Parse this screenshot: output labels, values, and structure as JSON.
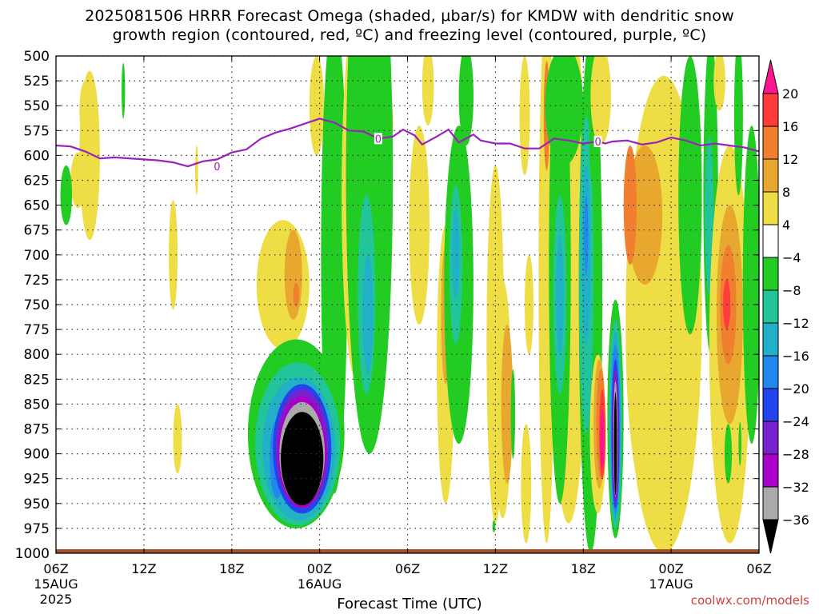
{
  "title_line1": "2025081506 HRRR Forecast Omega (shaded, μbar/s) for KMDW with dendritic snow",
  "title_line2": "growth region (contoured, red, ºC) and freezing level (contoured, purple, ºC)",
  "credit": "coolwx.com/models",
  "chart_data": {
    "type": "heatmap",
    "xlabel": "Forecast Time (UTC)",
    "x_ticks": [
      {
        "label": "06Z",
        "date": "15AUG",
        "year": "2025",
        "hour": 0
      },
      {
        "label": "12Z",
        "date": "",
        "year": "",
        "hour": 6
      },
      {
        "label": "18Z",
        "date": "",
        "year": "",
        "hour": 12
      },
      {
        "label": "00Z",
        "date": "16AUG",
        "year": "",
        "hour": 18
      },
      {
        "label": "06Z",
        "date": "",
        "year": "",
        "hour": 24
      },
      {
        "label": "12Z",
        "date": "",
        "year": "",
        "hour": 30
      },
      {
        "label": "18Z",
        "date": "",
        "year": "",
        "hour": 36
      },
      {
        "label": "00Z",
        "date": "17AUG",
        "year": "",
        "hour": 42
      },
      {
        "label": "06Z",
        "date": "",
        "year": "",
        "hour": 48
      }
    ],
    "xlim_hours": [
      0,
      48
    ],
    "y_ticks": [
      500,
      525,
      550,
      575,
      600,
      625,
      650,
      675,
      700,
      725,
      750,
      775,
      800,
      825,
      850,
      875,
      900,
      925,
      950,
      975,
      1000
    ],
    "ylim": [
      500,
      1000
    ],
    "y_inverted": true,
    "colorbar": {
      "labels": [
        "20",
        "16",
        "12",
        "8",
        "4",
        "−4",
        "−8",
        "−12",
        "−16",
        "−20",
        "−24",
        "−28",
        "−32",
        "−36"
      ],
      "bands": [
        {
          "from": 20,
          "to": 24,
          "color": "#ff1493"
        },
        {
          "from": 16,
          "to": 20,
          "color": "#ff3c3c"
        },
        {
          "from": 12,
          "to": 16,
          "color": "#f08030"
        },
        {
          "from": 8,
          "to": 12,
          "color": "#e8a830"
        },
        {
          "from": 4,
          "to": 8,
          "color": "#eedd44"
        },
        {
          "from": -4,
          "to": 4,
          "color": "#ffffff"
        },
        {
          "from": -8,
          "to": -4,
          "color": "#22cc22"
        },
        {
          "from": -12,
          "to": -8,
          "color": "#22c49a"
        },
        {
          "from": -16,
          "to": -12,
          "color": "#22b0c8"
        },
        {
          "from": -20,
          "to": -16,
          "color": "#2288ee"
        },
        {
          "from": -24,
          "to": -20,
          "color": "#2244ee"
        },
        {
          "from": -28,
          "to": -24,
          "color": "#7722cc"
        },
        {
          "from": -32,
          "to": -28,
          "color": "#aa00cc"
        },
        {
          "from": -36,
          "to": -32,
          "color": "#aaaaaa"
        },
        {
          "from": -40,
          "to": -36,
          "color": "#000000"
        }
      ]
    },
    "freezing_level": {
      "label": "0",
      "color": "#9922bb",
      "points": [
        [
          0,
          590
        ],
        [
          1,
          591
        ],
        [
          2,
          596
        ],
        [
          3,
          603
        ],
        [
          4,
          602
        ],
        [
          5,
          603
        ],
        [
          6,
          604
        ],
        [
          7,
          605
        ],
        [
          8,
          607
        ],
        [
          9,
          611
        ],
        [
          10,
          606
        ],
        [
          11,
          604
        ],
        [
          12,
          597
        ],
        [
          13,
          594
        ],
        [
          14,
          583
        ],
        [
          15,
          577
        ],
        [
          16,
          573
        ],
        [
          17,
          568
        ],
        [
          18,
          563
        ],
        [
          19,
          567
        ],
        [
          20,
          575
        ],
        [
          21,
          576
        ],
        [
          22,
          583
        ],
        [
          23,
          581
        ],
        [
          23.7,
          574
        ],
        [
          24.5,
          580
        ],
        [
          25,
          589
        ],
        [
          26,
          581
        ],
        [
          26.8,
          574
        ],
        [
          27.5,
          587
        ],
        [
          28.5,
          579
        ],
        [
          29,
          585
        ],
        [
          30,
          588
        ],
        [
          31,
          588
        ],
        [
          32,
          593
        ],
        [
          33,
          593
        ],
        [
          34,
          583
        ],
        [
          35,
          585
        ],
        [
          36,
          588
        ],
        [
          37,
          586
        ],
        [
          37.5,
          588
        ],
        [
          38,
          586
        ],
        [
          39,
          585
        ],
        [
          40,
          589
        ],
        [
          41,
          587
        ],
        [
          42,
          582
        ],
        [
          43,
          585
        ],
        [
          44,
          590
        ],
        [
          45,
          588
        ],
        [
          46,
          590
        ],
        [
          47,
          592
        ],
        [
          48,
          596
        ]
      ],
      "label_positions": [
        [
          11,
          611
        ],
        [
          22,
          583
        ],
        [
          37,
          586
        ]
      ]
    },
    "surface_fill": {
      "color": "#a0522d",
      "pressure_from": 996,
      "pressure_to": 1000
    },
    "omega_features": [
      {
        "x": 2.3,
        "p": 600,
        "rx": 0.7,
        "rp": 85,
        "value": 5
      },
      {
        "x": 2.0,
        "p": 555,
        "rx": 0.4,
        "rp": 30,
        "value": 5
      },
      {
        "x": 1.5,
        "p": 625,
        "rx": 0.5,
        "rp": 28,
        "value": 5
      },
      {
        "x": 0.7,
        "p": 640,
        "rx": 0.4,
        "rp": 30,
        "value": -6
      },
      {
        "x": 4.6,
        "p": 535,
        "rx": 0.12,
        "rp": 28,
        "value": -6
      },
      {
        "x": 9.6,
        "p": 615,
        "rx": 0.1,
        "rp": 25,
        "value": 5
      },
      {
        "x": 8.0,
        "p": 700,
        "rx": 0.3,
        "rp": 55,
        "value": 5
      },
      {
        "x": 8.3,
        "p": 885,
        "rx": 0.3,
        "rp": 35,
        "value": 5
      },
      {
        "x": 15.5,
        "p": 730,
        "rx": 1.8,
        "rp": 65,
        "value": 5
      },
      {
        "x": 16.2,
        "p": 720,
        "rx": 0.6,
        "rp": 45,
        "value": 9
      },
      {
        "x": 16.4,
        "p": 740,
        "rx": 0.2,
        "rp": 12,
        "value": 13
      },
      {
        "x": 17.8,
        "p": 550,
        "rx": 0.5,
        "rp": 50,
        "value": 5
      },
      {
        "x": 19.0,
        "p": 700,
        "rx": 0.9,
        "rp": 240,
        "value": -6
      },
      {
        "x": 16.4,
        "p": 880,
        "rx": 3.3,
        "rp": 95,
        "value": -6
      },
      {
        "x": 16.5,
        "p": 890,
        "rx": 2.9,
        "rp": 82,
        "value": -10
      },
      {
        "x": 16.6,
        "p": 895,
        "rx": 2.5,
        "rp": 72,
        "value": -14
      },
      {
        "x": 15.1,
        "p": 905,
        "rx": 0.5,
        "rp": 40,
        "value": -18
      },
      {
        "x": 16.8,
        "p": 895,
        "rx": 2.0,
        "rp": 65,
        "value": -22
      },
      {
        "x": 16.8,
        "p": 895,
        "rx": 1.8,
        "rp": 60,
        "value": -26
      },
      {
        "x": 16.8,
        "p": 898,
        "rx": 1.65,
        "rp": 56,
        "value": -30
      },
      {
        "x": 16.8,
        "p": 900,
        "rx": 1.55,
        "rp": 52,
        "value": -34
      },
      {
        "x": 16.8,
        "p": 905,
        "rx": 1.45,
        "rp": 47,
        "value": -38
      },
      {
        "x": 20.5,
        "p": 640,
        "rx": 1.0,
        "rp": 185,
        "value": 5
      },
      {
        "x": 20.4,
        "p": 620,
        "rx": 0.6,
        "rp": 140,
        "value": 9
      },
      {
        "x": 20.3,
        "p": 620,
        "rx": 0.45,
        "rp": 110,
        "value": 13
      },
      {
        "x": 20.3,
        "p": 630,
        "rx": 0.35,
        "rp": 90,
        "value": 17
      },
      {
        "x": 20.2,
        "p": 650,
        "rx": 0.25,
        "rp": 70,
        "value": 21
      },
      {
        "x": 21.8,
        "p": 570,
        "rx": 1.2,
        "rp": 80,
        "value": 9
      },
      {
        "x": 21.5,
        "p": 545,
        "rx": 1.0,
        "rp": 50,
        "value": 13
      },
      {
        "x": 21.4,
        "p": 620,
        "rx": 1.6,
        "rp": 280,
        "value": -6
      },
      {
        "x": 21.2,
        "p": 740,
        "rx": 0.6,
        "rp": 100,
        "value": -10
      },
      {
        "x": 21.3,
        "p": 760,
        "rx": 0.35,
        "rp": 60,
        "value": -14
      },
      {
        "x": 24.8,
        "p": 670,
        "rx": 0.7,
        "rp": 100,
        "value": 5
      },
      {
        "x": 25.4,
        "p": 530,
        "rx": 0.4,
        "rp": 40,
        "value": 5
      },
      {
        "x": 26.6,
        "p": 810,
        "rx": 0.6,
        "rp": 140,
        "value": 5
      },
      {
        "x": 26.6,
        "p": 760,
        "rx": 0.3,
        "rp": 70,
        "value": 9
      },
      {
        "x": 27.5,
        "p": 730,
        "rx": 1.0,
        "rp": 160,
        "value": -6
      },
      {
        "x": 27.3,
        "p": 710,
        "rx": 0.45,
        "rp": 80,
        "value": -10
      },
      {
        "x": 27.3,
        "p": 700,
        "rx": 0.25,
        "rp": 45,
        "value": -14
      },
      {
        "x": 28.0,
        "p": 540,
        "rx": 0.5,
        "rp": 50,
        "value": -6
      },
      {
        "x": 30.0,
        "p": 790,
        "rx": 0.6,
        "rp": 180,
        "value": 5
      },
      {
        "x": 30.5,
        "p": 845,
        "rx": 0.6,
        "rp": 120,
        "value": 5
      },
      {
        "x": 30.8,
        "p": 850,
        "rx": 0.4,
        "rp": 80,
        "value": 9
      },
      {
        "x": 31.2,
        "p": 860,
        "rx": 0.15,
        "rp": 45,
        "value": -6
      },
      {
        "x": 29.9,
        "p": 973,
        "rx": 0.1,
        "rp": 6,
        "value": -6
      },
      {
        "x": 32.1,
        "p": 930,
        "rx": 0.35,
        "rp": 60,
        "value": 5
      },
      {
        "x": 32.3,
        "p": 750,
        "rx": 0.3,
        "rp": 50,
        "value": 5
      },
      {
        "x": 33.5,
        "p": 720,
        "rx": 0.55,
        "rp": 270,
        "value": 5
      },
      {
        "x": 32.0,
        "p": 560,
        "rx": 0.35,
        "rp": 60,
        "value": 5
      },
      {
        "x": 35.0,
        "p": 710,
        "rx": 1.3,
        "rp": 260,
        "value": 5
      },
      {
        "x": 33.5,
        "p": 560,
        "rx": 0.2,
        "rp": 55,
        "value": 13
      },
      {
        "x": 34.7,
        "p": 550,
        "rx": 1.3,
        "rp": 60,
        "value": -6
      },
      {
        "x": 34.4,
        "p": 710,
        "rx": 0.75,
        "rp": 240,
        "value": -6
      },
      {
        "x": 34.4,
        "p": 740,
        "rx": 0.45,
        "rp": 100,
        "value": -10
      },
      {
        "x": 34.4,
        "p": 740,
        "rx": 0.25,
        "rp": 60,
        "value": -14
      },
      {
        "x": 36.5,
        "p": 740,
        "rx": 0.8,
        "rp": 260,
        "value": -6
      },
      {
        "x": 36.2,
        "p": 720,
        "rx": 0.5,
        "rp": 160,
        "value": -10
      },
      {
        "x": 36.2,
        "p": 700,
        "rx": 0.3,
        "rp": 90,
        "value": -14
      },
      {
        "x": 36.2,
        "p": 680,
        "rx": 0.15,
        "rp": 40,
        "value": -18
      },
      {
        "x": 36.7,
        "p": 580,
        "rx": 0.3,
        "rp": 50,
        "value": -6
      },
      {
        "x": 37.2,
        "p": 540,
        "rx": 0.7,
        "rp": 50,
        "value": 5
      },
      {
        "x": 37.0,
        "p": 880,
        "rx": 0.55,
        "rp": 80,
        "value": 5
      },
      {
        "x": 37.1,
        "p": 870,
        "rx": 0.4,
        "rp": 65,
        "value": 9
      },
      {
        "x": 37.2,
        "p": 870,
        "rx": 0.3,
        "rp": 55,
        "value": 13
      },
      {
        "x": 37.3,
        "p": 880,
        "rx": 0.22,
        "rp": 45,
        "value": 17
      },
      {
        "x": 37.3,
        "p": 885,
        "rx": 0.14,
        "rp": 30,
        "value": 21
      },
      {
        "x": 38.2,
        "p": 865,
        "rx": 0.55,
        "rp": 120,
        "value": -6
      },
      {
        "x": 38.2,
        "p": 870,
        "rx": 0.45,
        "rp": 105,
        "value": -10
      },
      {
        "x": 38.2,
        "p": 872,
        "rx": 0.38,
        "rp": 95,
        "value": -14
      },
      {
        "x": 38.2,
        "p": 875,
        "rx": 0.32,
        "rp": 85,
        "value": -18
      },
      {
        "x": 38.2,
        "p": 880,
        "rx": 0.27,
        "rp": 75,
        "value": -22
      },
      {
        "x": 38.2,
        "p": 882,
        "rx": 0.22,
        "rp": 68,
        "value": -26
      },
      {
        "x": 38.2,
        "p": 885,
        "rx": 0.18,
        "rp": 62,
        "value": -30
      },
      {
        "x": 38.2,
        "p": 885,
        "rx": 0.14,
        "rp": 58,
        "value": -34
      },
      {
        "x": 38.2,
        "p": 890,
        "rx": 0.1,
        "rp": 52,
        "value": -38
      },
      {
        "x": 41.5,
        "p": 760,
        "rx": 2.6,
        "rp": 240,
        "value": 5
      },
      {
        "x": 40.5,
        "p": 780,
        "rx": 1.6,
        "rp": 170,
        "value": 5
      },
      {
        "x": 40.2,
        "p": 660,
        "rx": 1.2,
        "rp": 70,
        "value": 9
      },
      {
        "x": 39.2,
        "p": 650,
        "rx": 0.45,
        "rp": 60,
        "value": 13
      },
      {
        "x": 44.7,
        "p": 640,
        "rx": 0.5,
        "rp": 160,
        "value": -6
      },
      {
        "x": 44.6,
        "p": 660,
        "rx": 0.3,
        "rp": 80,
        "value": -10
      },
      {
        "x": 43.3,
        "p": 640,
        "rx": 0.8,
        "rp": 140,
        "value": -6
      },
      {
        "x": 46.0,
        "p": 790,
        "rx": 1.4,
        "rp": 200,
        "value": 5
      },
      {
        "x": 46.0,
        "p": 760,
        "rx": 0.9,
        "rp": 110,
        "value": 9
      },
      {
        "x": 45.9,
        "p": 750,
        "rx": 0.55,
        "rp": 60,
        "value": 13
      },
      {
        "x": 45.8,
        "p": 750,
        "rx": 0.25,
        "rp": 25,
        "value": 17
      },
      {
        "x": 46.6,
        "p": 560,
        "rx": 0.3,
        "rp": 80,
        "value": -6
      },
      {
        "x": 45.3,
        "p": 525,
        "rx": 0.4,
        "rp": 30,
        "value": 5
      },
      {
        "x": 47.5,
        "p": 730,
        "rx": 0.6,
        "rp": 160,
        "value": -6
      },
      {
        "x": 46.7,
        "p": 890,
        "rx": 0.1,
        "rp": 22,
        "value": -6
      },
      {
        "x": 45.9,
        "p": 900,
        "rx": 0.25,
        "rp": 30,
        "value": -6
      }
    ]
  }
}
